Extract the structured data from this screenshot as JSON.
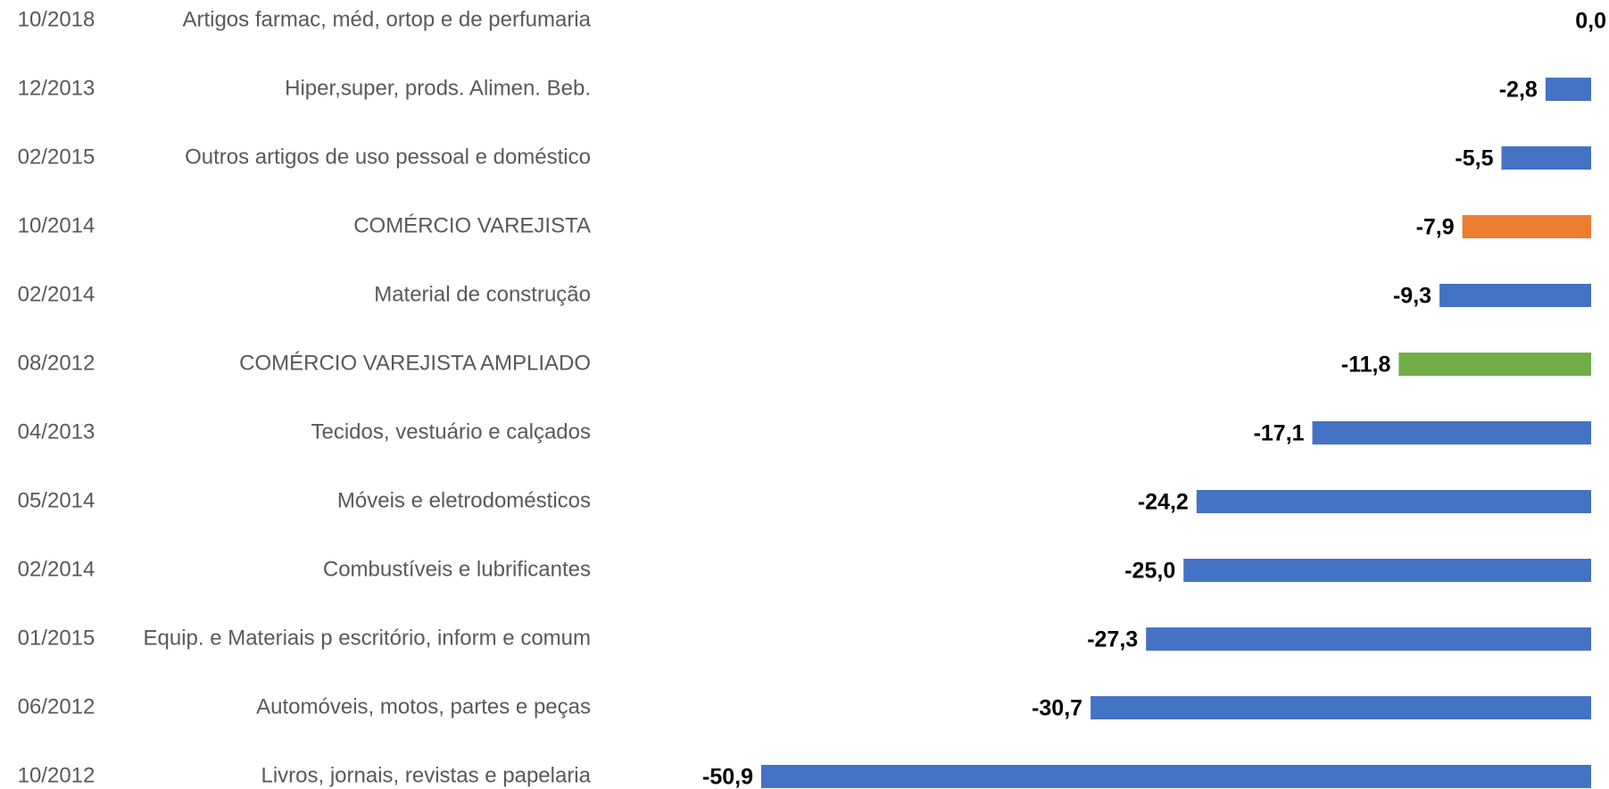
{
  "chart_data": {
    "type": "bar",
    "orientation": "horizontal",
    "dates": [
      "10/2018",
      "12/2013",
      "02/2015",
      "10/2014",
      "02/2014",
      "08/2012",
      "04/2013",
      "05/2014",
      "02/2014",
      "01/2015",
      "06/2012",
      "10/2012"
    ],
    "categories": [
      "Artigos farmac, méd, ortop e de perfumaria",
      "Hiper,super, prods. Alimen. Beb.",
      "Outros artigos de uso pessoal e doméstico",
      "COMÉRCIO VAREJISTA",
      "Material de construção",
      "COMÉRCIO VAREJISTA AMPLIADO",
      "Tecidos, vestuário e calçados",
      "Móveis e eletrodomésticos",
      "Combustíveis e lubrificantes",
      "Equip. e Materiais p escritório, inform e comum",
      "Automóveis, motos, partes e peças",
      "Livros, jornais, revistas e papelaria"
    ],
    "values": [
      0.0,
      -2.8,
      -5.5,
      -7.9,
      -9.3,
      -11.8,
      -17.1,
      -24.2,
      -25.0,
      -27.3,
      -30.7,
      -50.9
    ],
    "value_labels": [
      "0,0",
      "-2,8",
      "-5,5",
      "-7,9",
      "-9,3",
      "-11,8",
      "-17,1",
      "-24,2",
      "-25,0",
      "-27,3",
      "-30,7",
      "-50,9"
    ],
    "colors": [
      "#4472c4",
      "#4472c4",
      "#4472c4",
      "#ed7d31",
      "#4472c4",
      "#70ad47",
      "#4472c4",
      "#4472c4",
      "#4472c4",
      "#4472c4",
      "#4472c4",
      "#4472c4"
    ]
  }
}
